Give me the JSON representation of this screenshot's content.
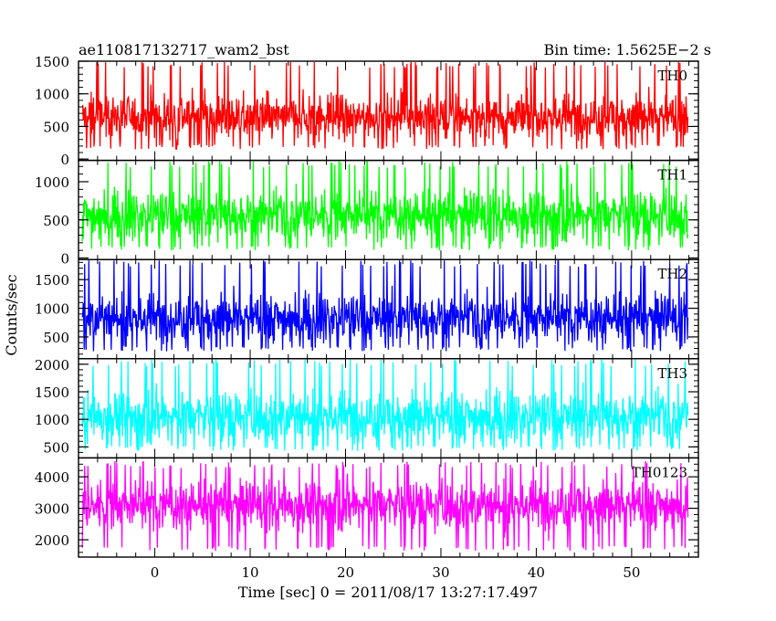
{
  "header": {
    "title": "ae110817132717_wam2_bst",
    "bin_time": "Bin time: 1.5625E−2 s"
  },
  "chart_data": {
    "type": "line",
    "xlabel": "Time [sec] 0 = 2011/08/17 13:27:17.497",
    "ylabel": "Counts/sec",
    "xlim": [
      -8,
      57
    ],
    "xticks": [
      0,
      10,
      20,
      30,
      40,
      50
    ],
    "x_data_range": [
      -7.6,
      55.9
    ],
    "panels": [
      {
        "name": "TH0",
        "color": "#ff0000",
        "ylim": [
          -20,
          1500
        ],
        "yticks": [
          0,
          500,
          1000,
          1500
        ],
        "signal": {
          "min": 150,
          "max": 1500,
          "mean": 650,
          "spread": 170
        }
      },
      {
        "name": "TH1",
        "color": "#00ff00",
        "ylim": [
          -20,
          1280
        ],
        "yticks": [
          0,
          500,
          1000
        ],
        "signal": {
          "min": 100,
          "max": 1280,
          "mean": 560,
          "spread": 160
        }
      },
      {
        "name": "TH2",
        "color": "#0000ff",
        "ylim": [
          120,
          1850
        ],
        "yticks": [
          500,
          1000,
          1500
        ],
        "signal": {
          "min": 250,
          "max": 1850,
          "mean": 830,
          "spread": 210
        }
      },
      {
        "name": "TH3",
        "color": "#00ffff",
        "ylim": [
          300,
          2100
        ],
        "yticks": [
          500,
          1000,
          1500,
          2000
        ],
        "signal": {
          "min": 430,
          "max": 2100,
          "mean": 1050,
          "spread": 230
        }
      },
      {
        "name": "TH0123",
        "color": "#ff00ff",
        "ylim": [
          1450,
          4600
        ],
        "yticks": [
          2000,
          3000,
          4000
        ],
        "signal": {
          "min": 1650,
          "max": 4500,
          "mean": 3100,
          "spread": 380
        }
      }
    ]
  }
}
